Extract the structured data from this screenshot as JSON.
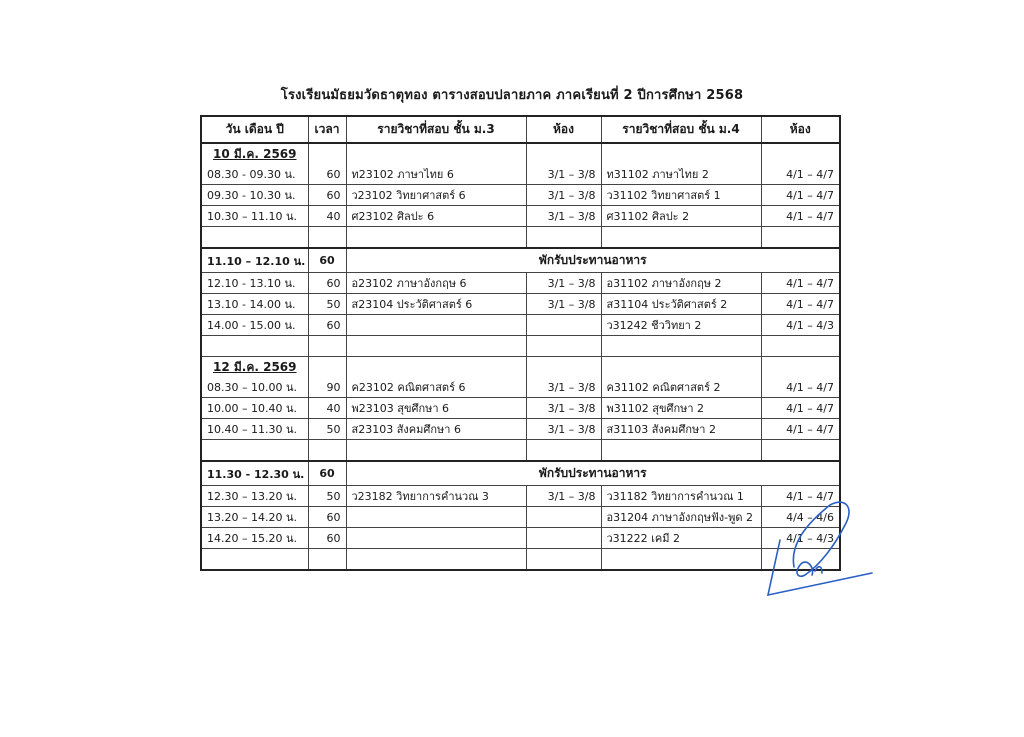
{
  "title": "โรงเรียนมัธยมวัดธาตุทอง ตารางสอบปลายภาค ภาคเรียนที่  2    ปีการศึกษา  2568",
  "headers": [
    "วัน เดือน ปี",
    "เวลา",
    "รายวิชาที่สอบ ชั้น ม.3",
    "ห้อง",
    "รายวิชาที่สอบ ชั้น ม.4",
    "ห้อง"
  ],
  "lunch_label": "พักรับประทานอาหาร",
  "day1": {
    "date": "10 มี.ค. 2569",
    "rows": [
      {
        "time": "08.30 - 09.30 น.",
        "min": "60",
        "m3": "ท23102 ภาษาไทย 6",
        "r3": "3/1 – 3/8",
        "m4": "ท31102 ภาษาไทย 2",
        "r4": "4/1 – 4/7"
      },
      {
        "time": "09.30 - 10.30 น.",
        "min": "60",
        "m3": "ว23102 วิทยาศาสตร์ 6",
        "r3": "3/1 – 3/8",
        "m4": "ว31102 วิทยาศาสตร์ 1",
        "r4": "4/1 – 4/7"
      },
      {
        "time": "10.30 – 11.10 น.",
        "min": "40",
        "m3": "ศ23102  ศิลปะ 6",
        "r3": "3/1 – 3/8",
        "m4": "ศ31102 ศิลปะ 2",
        "r4": "4/1 – 4/7"
      }
    ],
    "lunch": {
      "time": "11.10 – 12.10 น.",
      "min": "60"
    },
    "after": [
      {
        "time": "12.10 - 13.10 น.",
        "min": "60",
        "m3": "อ23102 ภาษาอังกฤษ 6",
        "r3": "3/1 – 3/8",
        "m4": "อ31102 ภาษาอังกฤษ 2",
        "r4": "4/1 – 4/7"
      },
      {
        "time": "13.10 - 14.00 น.",
        "min": "50",
        "m3": "ส23104 ประวัติศาสตร์ 6",
        "r3": "3/1 – 3/8",
        "m4": "ส31104 ประวัติศาสตร์ 2",
        "r4": "4/1 – 4/7"
      },
      {
        "time": "14.00 - 15.00 น.",
        "min": "60",
        "m3": "",
        "r3": "",
        "m4": "ว31242 ชีววิทยา 2",
        "r4": "4/1 – 4/3"
      }
    ]
  },
  "day2": {
    "date": "12 มี.ค. 2569",
    "rows": [
      {
        "time": "08.30 – 10.00 น.",
        "min": "90",
        "m3": "ค23102  คณิตศาสตร์ 6",
        "r3": "3/1 – 3/8",
        "m4": "ค31102  คณิตศาสตร์ 2",
        "r4": "4/1 – 4/7"
      },
      {
        "time": "10.00 – 10.40 น.",
        "min": "40",
        "m3": "พ23103 สุขศึกษา 6",
        "r3": "3/1 – 3/8",
        "m4": "พ31102 สุขศึกษา 2",
        "r4": "4/1 – 4/7"
      },
      {
        "time": "10.40 – 11.30 น.",
        "min": "50",
        "m3": "ส23103 สังคมศึกษา 6",
        "r3": "3/1 – 3/8",
        "m4": "ส31103 สังคมศึกษา 2",
        "r4": "4/1 – 4/7"
      }
    ],
    "lunch": {
      "time": "11.30 - 12.30 น.",
      "min": "60"
    },
    "after": [
      {
        "time": "12.30 – 13.20 น.",
        "min": "50",
        "m3": "ว23182 วิทยาการคำนวณ 3",
        "r3": "3/1 – 3/8",
        "m4": "ว31182 วิทยาการคำนวณ 1",
        "r4": "4/1 – 4/7"
      },
      {
        "time": "13.20 – 14.20 น.",
        "min": "60",
        "m3": "",
        "r3": "",
        "m4": "อ31204 ภาษาอังกฤษฟัง-พูด 2",
        "r4": "4/4 – 4/6"
      },
      {
        "time": "14.20 – 15.20 น.",
        "min": "60",
        "m3": "",
        "r3": "",
        "m4": "ว31222 เคมี 2",
        "r4": "4/1 – 4/3"
      }
    ]
  },
  "signature_color": "#2a5fc4"
}
